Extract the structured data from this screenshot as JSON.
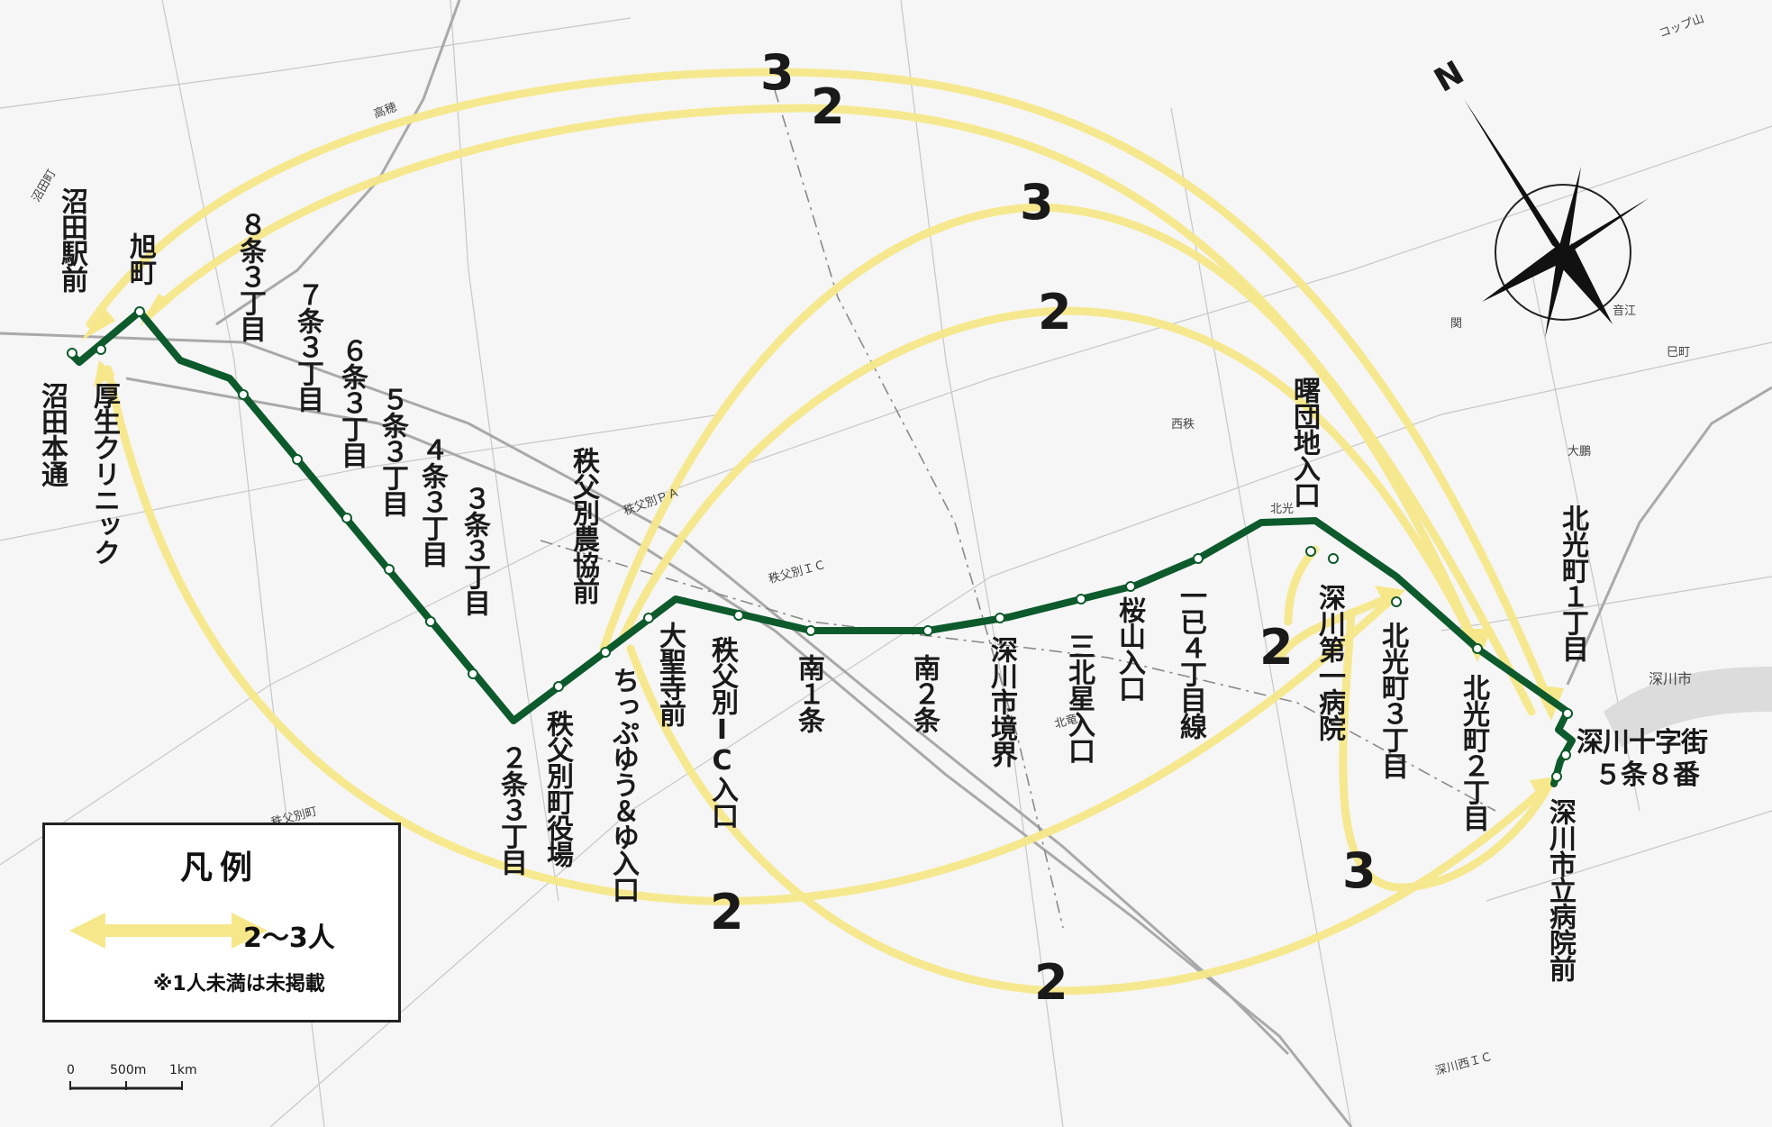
{
  "map": {
    "stops": [
      {
        "id": "numata-ekimae",
        "label": "沼田駅前"
      },
      {
        "id": "asahimachi",
        "label": "旭町"
      },
      {
        "id": "numata-hondori",
        "label": "沼田本通"
      },
      {
        "id": "kosei-clinic",
        "label": "厚生クリニック"
      },
      {
        "id": "8jo3",
        "label": "８条３丁目"
      },
      {
        "id": "7jo3",
        "label": "７条３丁目"
      },
      {
        "id": "6jo3",
        "label": "６条３丁目"
      },
      {
        "id": "5jo3",
        "label": "５条３丁目"
      },
      {
        "id": "4jo3",
        "label": "４条３丁目"
      },
      {
        "id": "3jo3",
        "label": "３条３丁目"
      },
      {
        "id": "2jo3",
        "label": "２条３丁目"
      },
      {
        "id": "chichibubetsu-yakuba",
        "label": "秩父別町役場"
      },
      {
        "id": "chichibubetsu-nokyo",
        "label": "秩父別農協前"
      },
      {
        "id": "chippuyu",
        "label": "ちっぷゆう＆ゆ入口"
      },
      {
        "id": "taishoji",
        "label": "大聖寺前"
      },
      {
        "id": "chichibubetsu-ic",
        "label": "秩父別IC入口"
      },
      {
        "id": "minami1",
        "label": "南１条"
      },
      {
        "id": "minami2",
        "label": "南２条"
      },
      {
        "id": "fukagawa-kyokai",
        "label": "深川市境界"
      },
      {
        "id": "sanboku",
        "label": "三北星入口"
      },
      {
        "id": "sakurayama",
        "label": "桜山入口"
      },
      {
        "id": "ichiki4",
        "label": "一已４丁目線"
      },
      {
        "id": "akebono",
        "label": "曙団地入口"
      },
      {
        "id": "fukagawa-daiichi",
        "label": "深川第一病院"
      },
      {
        "id": "hokko3",
        "label": "北光町３丁目"
      },
      {
        "id": "hokko2",
        "label": "北光町２丁目"
      },
      {
        "id": "hokko1",
        "label": "北光町１丁目"
      },
      {
        "id": "juji-1",
        "label": "深川十字街"
      },
      {
        "id": "juji-2",
        "label": "５条８番"
      },
      {
        "id": "shiritsu",
        "label": "深川市立病院前"
      }
    ],
    "flows": [
      "3",
      "2",
      "3",
      "2",
      "2",
      "3",
      "2",
      "2"
    ],
    "place_names": [
      "沼田町",
      "深川市",
      "秩父別町",
      "秩父別ＰＡ",
      "秩父別ＩＣ",
      "深川西ＩＣ",
      "コップ山",
      "高穂",
      "北竜",
      "西秩",
      "大鵬",
      "巳町",
      "関",
      "北光",
      "音江"
    ],
    "legend": {
      "title": "凡例",
      "label": "2～3人",
      "note": "※1人未満は未掲載"
    },
    "scale": {
      "zero": "0",
      "mid": "500m",
      "end": "1km"
    },
    "compass": {
      "north": "N"
    },
    "colors": {
      "route": "#0d5a2c",
      "flow": "#f6e88a",
      "flow_edge": "#efd96a",
      "road": "#9a9a9a"
    }
  }
}
